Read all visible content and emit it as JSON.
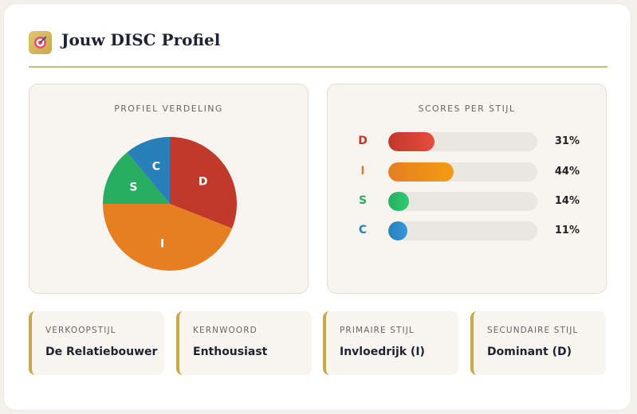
{
  "header": {
    "title": "Jouw DISC Profiel",
    "icon": "target-icon"
  },
  "distribution": {
    "title": "PROFIEL VERDELING",
    "chart_data": {
      "type": "pie",
      "slices": [
        {
          "label": "D",
          "value": 31,
          "color": "#c0392b"
        },
        {
          "label": "I",
          "value": 44,
          "color": "#e67e22"
        },
        {
          "label": "S",
          "value": 14,
          "color": "#27ae60"
        },
        {
          "label": "C",
          "value": 11,
          "color": "#2980b9"
        }
      ]
    }
  },
  "scores": {
    "title": "SCORES PER STIJL",
    "rows": [
      {
        "letter": "D",
        "percent": "31%",
        "value": 31,
        "color": "#c0392b",
        "gradient": [
          "#c0392b",
          "#e74c3c"
        ]
      },
      {
        "letter": "I",
        "percent": "44%",
        "value": 44,
        "color": "#e67e22",
        "gradient": [
          "#e67e22",
          "#f39c12"
        ]
      },
      {
        "letter": "S",
        "percent": "14%",
        "value": 14,
        "color": "#27ae60",
        "gradient": [
          "#27ae60",
          "#2ecc71"
        ]
      },
      {
        "letter": "C",
        "percent": "11%",
        "value": 11,
        "color": "#2980b9",
        "gradient": [
          "#2980b9",
          "#3498db"
        ]
      }
    ]
  },
  "info_cards": [
    {
      "label": "VERKOOPSTIJL",
      "value": "De Relatiebouwer"
    },
    {
      "label": "KERNWOORD",
      "value": "Enthousiast"
    },
    {
      "label": "PRIMAIRE STIJL",
      "value": "Invloedrijk (I)"
    },
    {
      "label": "SECUNDAIRE STIJL",
      "value": "Dominant (D)"
    }
  ],
  "colors": {
    "accent_gold": "#c9a84c",
    "title": "#1e2233"
  }
}
